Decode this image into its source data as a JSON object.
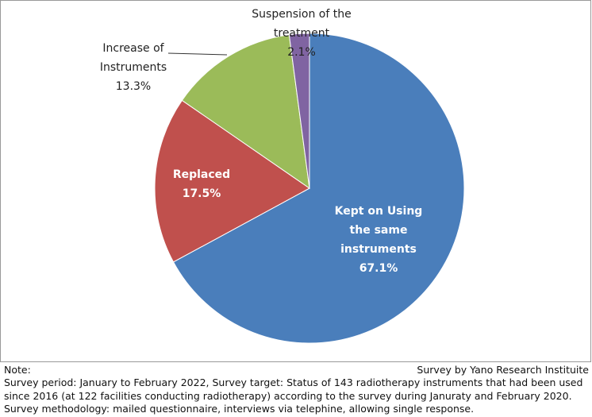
{
  "chart_data": {
    "type": "pie",
    "categories": [
      "Kept on Using the same instruments",
      "Replaced",
      "Increase of Instruments",
      "Suspension of the treatment"
    ],
    "values": [
      67.1,
      17.5,
      13.3,
      2.1
    ],
    "value_labels": [
      "67.1%",
      "17.5%",
      "13.3%",
      "2.1%"
    ],
    "colors": [
      "#4a7ebb",
      "#c0504d",
      "#9bbb59",
      "#8064a2"
    ],
    "note_title": "Note:",
    "source": "Survey by Yano Research Instituite",
    "note_text": "Survey period: January to February 2022, Survey target: Status of 143 radiotherapy instruments that had been used since 2016 (at 122 facilities conducting radiotherapy) according to the survey during Januraty and February 2020.  Survey methodology: mailed questionnaire, interviews via telephine, allowing single response."
  }
}
